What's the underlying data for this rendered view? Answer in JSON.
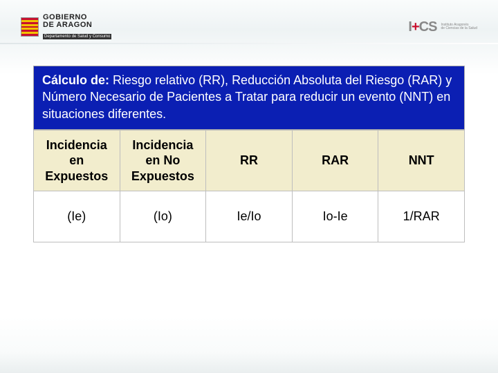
{
  "header": {
    "gov_line1": "GOBIERNO",
    "gov_line2": "DE ARAGON",
    "gov_line3": "Departamento de Salud y Consumo",
    "ics_logo": "I+CS",
    "ics_sub1": "Instituto Aragonés",
    "ics_sub2": "de Ciencias de la Salud"
  },
  "title": {
    "bold": "Cálculo de:",
    "rest": " Riesgo relativo (RR), Reducción Absoluta del Riesgo (RAR) y Número Necesario de Pacientes a Tratar para reducir un evento (NNT) en situaciones diferentes."
  },
  "table": {
    "columns": [
      "Incidencia en Expuestos",
      "Incidencia en No Expuestos",
      "RR",
      "RAR",
      "NNT"
    ],
    "rows": [
      [
        "(Ie)",
        "(Io)",
        "Ie/Io",
        "Io-Ie",
        "1/RAR"
      ]
    ],
    "header_bg": "#f2edcd",
    "border_color": "#bdbdbd",
    "header_fontsize": 18,
    "cell_fontsize": 18
  },
  "colors": {
    "title_bg": "#0b1fb3",
    "title_text": "#ffffff",
    "page_bg": "#ffffff"
  }
}
